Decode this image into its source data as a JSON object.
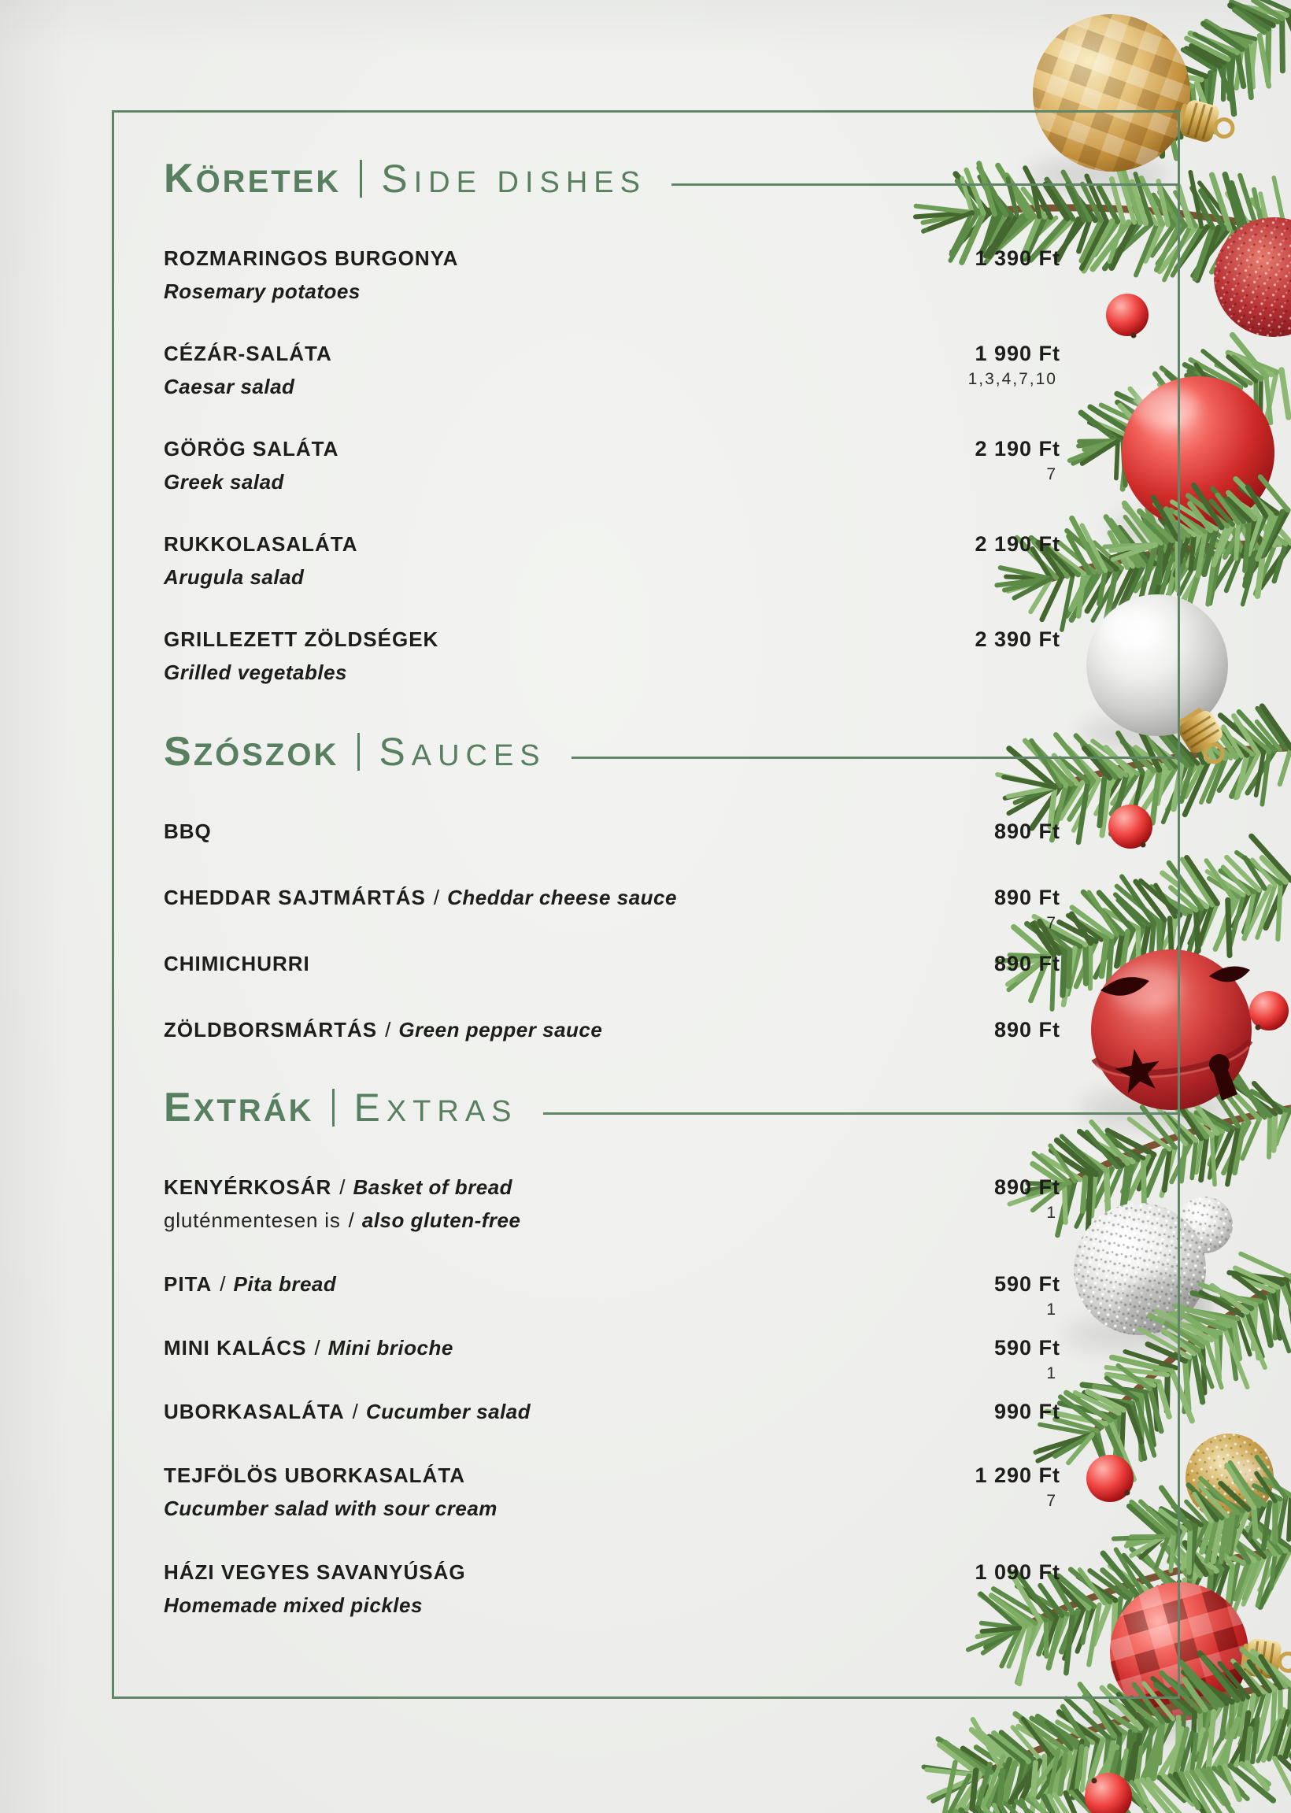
{
  "colors": {
    "accent_green": "#587f60",
    "frame_green": "#5f8667",
    "text": "#1d1d1b",
    "background": "#eeefec"
  },
  "menu": {
    "sections": [
      {
        "title_hu": "KÖRETEK",
        "title_en": "SIDE DISHES",
        "items": [
          {
            "hu": "ROZMARINGOS BURGONYA",
            "sep": "",
            "en": "",
            "l2_plain": "",
            "l2_sep": "",
            "l2_italic": "Rosemary potatoes",
            "price": "1 390 Ft",
            "allergens": ""
          },
          {
            "hu": "CÉZÁR-SALÁTA",
            "sep": "",
            "en": "",
            "l2_plain": "",
            "l2_sep": "",
            "l2_italic": "Caesar salad",
            "price": "1 990 Ft",
            "allergens": "1,3,4,7,10"
          },
          {
            "hu": "GÖRÖG SALÁTA",
            "sep": "",
            "en": "",
            "l2_plain": "",
            "l2_sep": "",
            "l2_italic": "Greek salad",
            "price": "2 190 Ft",
            "allergens": "7"
          },
          {
            "hu": "RUKKOLASALÁTA",
            "sep": "",
            "en": "",
            "l2_plain": "",
            "l2_sep": "",
            "l2_italic": "Arugula salad",
            "price": "2 190 Ft",
            "allergens": ""
          },
          {
            "hu": "GRILLEZETT ZÖLDSÉGEK",
            "sep": "",
            "en": "",
            "l2_plain": "",
            "l2_sep": "",
            "l2_italic": "Grilled vegetables",
            "price": "2 390 Ft",
            "allergens": ""
          }
        ]
      },
      {
        "title_hu": "SZÓSZOK",
        "title_en": "SAUCES",
        "items": [
          {
            "hu": "BBQ",
            "sep": "",
            "en": "",
            "l2_plain": "",
            "l2_sep": "",
            "l2_italic": "",
            "price": "890 Ft",
            "allergens": ""
          },
          {
            "hu": "CHEDDAR SAJTMÁRTÁS",
            "sep": "/",
            "en": "Cheddar cheese sauce",
            "l2_plain": "",
            "l2_sep": "",
            "l2_italic": "",
            "price": "890 Ft",
            "allergens": "7"
          },
          {
            "hu": "CHIMICHURRI",
            "sep": "",
            "en": "",
            "l2_plain": "",
            "l2_sep": "",
            "l2_italic": "",
            "price": "890 Ft",
            "allergens": ""
          },
          {
            "hu": "ZÖLDBORSMÁRTÁS",
            "sep": "/",
            "en": "Green pepper sauce",
            "l2_plain": "",
            "l2_sep": "",
            "l2_italic": "",
            "price": "890 Ft",
            "allergens": ""
          }
        ]
      },
      {
        "title_hu": "EXTRÁK",
        "title_en": "EXTRAS",
        "items": [
          {
            "hu": "KENYÉRKOSÁR",
            "sep": "/",
            "en": "Basket of bread",
            "l2_plain": "gluténmentesen is",
            "l2_sep": "/",
            "l2_italic": "also gluten-free",
            "price": "890 Ft",
            "allergens": "1"
          },
          {
            "hu": "PITA",
            "sep": "/",
            "en": "Pita bread",
            "l2_plain": "",
            "l2_sep": "",
            "l2_italic": "",
            "price": "590 Ft",
            "allergens": "1"
          },
          {
            "hu": "MINI KALÁCS",
            "sep": "/",
            "en": "Mini brioche",
            "l2_plain": "",
            "l2_sep": "",
            "l2_italic": "",
            "price": "590 Ft",
            "allergens": "1"
          },
          {
            "hu": "UBORKASALÁTA",
            "sep": "/",
            "en": "Cucumber salad",
            "l2_plain": "",
            "l2_sep": "",
            "l2_italic": "",
            "price": "990 Ft",
            "allergens": ""
          },
          {
            "hu": "TEJFÖLÖS UBORKASALÁTA",
            "sep": "",
            "en": "",
            "l2_plain": "",
            "l2_sep": "",
            "l2_italic": "Cucumber salad with sour cream",
            "price": "1 290 Ft",
            "allergens": "7"
          },
          {
            "hu": "HÁZI VEGYES SAVANYÚSÁG",
            "sep": "",
            "en": "",
            "l2_plain": "",
            "l2_sep": "",
            "l2_italic": "Homemade mixed pickles",
            "price": "1 090 Ft",
            "allergens": ""
          }
        ]
      }
    ]
  }
}
